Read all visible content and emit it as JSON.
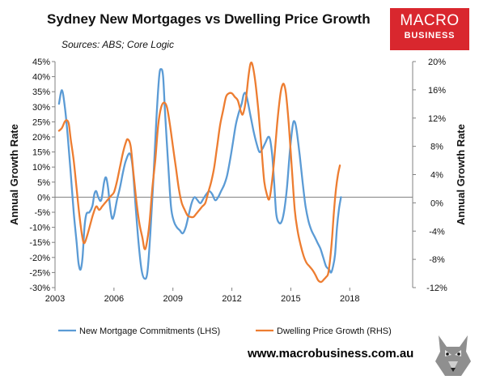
{
  "header": {
    "title": "Sydney New Mortgages vs Dwelling Price Growth",
    "subtitle": "Sources: ABS; Core Logic"
  },
  "logo": {
    "line1": "MACRO",
    "line2": "BUSINESS",
    "color": "#d9272e"
  },
  "footer": {
    "url": "www.macrobusiness.com.au",
    "mascot_icon": "wolf-icon"
  },
  "chart_data": {
    "type": "line",
    "x_range": [
      2003.0,
      2021.2
    ],
    "x_ticks": [
      {
        "value": 2003,
        "label": "2003"
      },
      {
        "value": 2006,
        "label": "2006"
      },
      {
        "value": 2009,
        "label": "2009"
      },
      {
        "value": 2012,
        "label": "2012"
      },
      {
        "value": 2015,
        "label": "2015"
      },
      {
        "value": 2018,
        "label": "2018"
      }
    ],
    "left_axis": {
      "label": "Annual Growth Rate",
      "range": [
        -30,
        45
      ],
      "ticks": [
        "45%",
        "40%",
        "35%",
        "30%",
        "25%",
        "20%",
        "15%",
        "10%",
        "5%",
        "0%",
        "-5%",
        "-10%",
        "-15%",
        "-20%",
        "-25%",
        "-30%"
      ],
      "tick_values": [
        45,
        40,
        35,
        30,
        25,
        20,
        15,
        10,
        5,
        0,
        -5,
        -10,
        -15,
        -20,
        -25,
        -30
      ]
    },
    "right_axis": {
      "label": "Annual Growth Rate",
      "range": [
        -12,
        20
      ],
      "ticks": [
        "20%",
        "16%",
        "12%",
        "8%",
        "4%",
        "0%",
        "-4%",
        "-8%",
        "-12%"
      ],
      "tick_values": [
        20,
        16,
        12,
        8,
        4,
        0,
        -4,
        -8,
        -12
      ]
    },
    "grid": false,
    "legend_position": "bottom",
    "series": [
      {
        "name": "New Mortgage Commitments (LHS)",
        "axis": "left",
        "color": "#5b9bd5",
        "points": [
          [
            2003.2,
            31
          ],
          [
            2003.35,
            35.5
          ],
          [
            2003.5,
            30
          ],
          [
            2003.65,
            20
          ],
          [
            2003.8,
            8
          ],
          [
            2003.95,
            -5
          ],
          [
            2004.1,
            -15
          ],
          [
            2004.2,
            -22
          ],
          [
            2004.3,
            -24
          ],
          [
            2004.4,
            -20
          ],
          [
            2004.5,
            -10
          ],
          [
            2004.6,
            -5.5
          ],
          [
            2004.75,
            -5
          ],
          [
            2004.9,
            -3
          ],
          [
            2005.0,
            1
          ],
          [
            2005.1,
            2
          ],
          [
            2005.2,
            0
          ],
          [
            2005.35,
            -1
          ],
          [
            2005.5,
            5
          ],
          [
            2005.6,
            6.5
          ],
          [
            2005.7,
            3
          ],
          [
            2005.8,
            -3
          ],
          [
            2005.9,
            -7
          ],
          [
            2006.0,
            -6
          ],
          [
            2006.15,
            -1
          ],
          [
            2006.3,
            3
          ],
          [
            2006.45,
            8
          ],
          [
            2006.6,
            12
          ],
          [
            2006.8,
            14.5
          ],
          [
            2006.95,
            10
          ],
          [
            2007.1,
            -3
          ],
          [
            2007.25,
            -15
          ],
          [
            2007.4,
            -24
          ],
          [
            2007.55,
            -27
          ],
          [
            2007.7,
            -25
          ],
          [
            2007.85,
            -12
          ],
          [
            2008.0,
            5
          ],
          [
            2008.15,
            25
          ],
          [
            2008.3,
            40
          ],
          [
            2008.4,
            42.5
          ],
          [
            2008.5,
            40
          ],
          [
            2008.6,
            28
          ],
          [
            2008.75,
            12
          ],
          [
            2008.9,
            -3
          ],
          [
            2009.05,
            -8
          ],
          [
            2009.2,
            -10
          ],
          [
            2009.35,
            -11
          ],
          [
            2009.5,
            -12
          ],
          [
            2009.65,
            -10
          ],
          [
            2009.8,
            -6
          ],
          [
            2009.95,
            -2
          ],
          [
            2010.1,
            0
          ],
          [
            2010.25,
            -1
          ],
          [
            2010.4,
            -2
          ],
          [
            2010.55,
            -0.5
          ],
          [
            2010.7,
            1
          ],
          [
            2010.85,
            2
          ],
          [
            2011.0,
            1
          ],
          [
            2011.15,
            -1
          ],
          [
            2011.3,
            0
          ],
          [
            2011.45,
            2
          ],
          [
            2011.6,
            4
          ],
          [
            2011.75,
            7
          ],
          [
            2011.9,
            12
          ],
          [
            2012.05,
            18
          ],
          [
            2012.2,
            24
          ],
          [
            2012.35,
            28
          ],
          [
            2012.5,
            31
          ],
          [
            2012.6,
            34
          ],
          [
            2012.7,
            34.5
          ],
          [
            2012.8,
            32
          ],
          [
            2012.95,
            27
          ],
          [
            2013.1,
            22
          ],
          [
            2013.25,
            18
          ],
          [
            2013.4,
            15
          ],
          [
            2013.55,
            16
          ],
          [
            2013.7,
            18
          ],
          [
            2013.85,
            20
          ],
          [
            2013.95,
            19
          ],
          [
            2014.05,
            14
          ],
          [
            2014.15,
            5
          ],
          [
            2014.25,
            -5
          ],
          [
            2014.35,
            -8
          ],
          [
            2014.5,
            -8.5
          ],
          [
            2014.65,
            -5
          ],
          [
            2014.8,
            3
          ],
          [
            2014.95,
            15
          ],
          [
            2015.1,
            24
          ],
          [
            2015.2,
            25
          ],
          [
            2015.3,
            22
          ],
          [
            2015.45,
            14
          ],
          [
            2015.6,
            5
          ],
          [
            2015.75,
            -3
          ],
          [
            2015.9,
            -8
          ],
          [
            2016.05,
            -11
          ],
          [
            2016.2,
            -13
          ],
          [
            2016.35,
            -15
          ],
          [
            2016.5,
            -17
          ],
          [
            2016.65,
            -20
          ],
          [
            2016.8,
            -23
          ],
          [
            2016.95,
            -24
          ],
          [
            2017.05,
            -25
          ],
          [
            2017.15,
            -23
          ],
          [
            2017.25,
            -19
          ],
          [
            2017.35,
            -10
          ],
          [
            2017.45,
            -4
          ],
          [
            2017.55,
            0
          ]
        ]
      },
      {
        "name": "Dwelling Price Growth (RHS)",
        "axis": "right",
        "color": "#ed7d31",
        "points": [
          [
            2003.2,
            10.2
          ],
          [
            2003.35,
            10.6
          ],
          [
            2003.5,
            11.5
          ],
          [
            2003.6,
            11.7
          ],
          [
            2003.7,
            11.2
          ],
          [
            2003.8,
            9
          ],
          [
            2003.95,
            6
          ],
          [
            2004.1,
            2
          ],
          [
            2004.25,
            -2
          ],
          [
            2004.4,
            -5
          ],
          [
            2004.5,
            -5.7
          ],
          [
            2004.65,
            -4.5
          ],
          [
            2004.8,
            -3
          ],
          [
            2004.95,
            -1.5
          ],
          [
            2005.1,
            -0.5
          ],
          [
            2005.25,
            -1
          ],
          [
            2005.4,
            -0.5
          ],
          [
            2005.55,
            0
          ],
          [
            2005.7,
            0.5
          ],
          [
            2005.85,
            1
          ],
          [
            2006.0,
            1.5
          ],
          [
            2006.15,
            3
          ],
          [
            2006.3,
            5
          ],
          [
            2006.45,
            7
          ],
          [
            2006.6,
            8.5
          ],
          [
            2006.7,
            9
          ],
          [
            2006.85,
            8
          ],
          [
            2007.0,
            4
          ],
          [
            2007.15,
            0
          ],
          [
            2007.3,
            -3
          ],
          [
            2007.45,
            -5
          ],
          [
            2007.55,
            -6.5
          ],
          [
            2007.65,
            -6
          ],
          [
            2007.8,
            -3
          ],
          [
            2007.95,
            2
          ],
          [
            2008.1,
            6
          ],
          [
            2008.25,
            11
          ],
          [
            2008.4,
            13.5
          ],
          [
            2008.55,
            14.2
          ],
          [
            2008.7,
            13.5
          ],
          [
            2008.85,
            11
          ],
          [
            2009.0,
            8
          ],
          [
            2009.15,
            5
          ],
          [
            2009.3,
            2
          ],
          [
            2009.45,
            0
          ],
          [
            2009.6,
            -1
          ],
          [
            2009.75,
            -1.8
          ],
          [
            2009.9,
            -2
          ],
          [
            2010.05,
            -2
          ],
          [
            2010.2,
            -1.5
          ],
          [
            2010.35,
            -1
          ],
          [
            2010.5,
            -0.5
          ],
          [
            2010.65,
            0
          ],
          [
            2010.8,
            1.5
          ],
          [
            2010.95,
            3
          ],
          [
            2011.1,
            5
          ],
          [
            2011.25,
            8
          ],
          [
            2011.4,
            11
          ],
          [
            2011.55,
            13
          ],
          [
            2011.7,
            15
          ],
          [
            2011.85,
            15.5
          ],
          [
            2012.0,
            15.5
          ],
          [
            2012.15,
            15
          ],
          [
            2012.3,
            14.5
          ],
          [
            2012.45,
            13
          ],
          [
            2012.55,
            12.5
          ],
          [
            2012.65,
            13.5
          ],
          [
            2012.75,
            15.5
          ],
          [
            2012.85,
            18
          ],
          [
            2012.95,
            19.7
          ],
          [
            2013.05,
            19.5
          ],
          [
            2013.2,
            17
          ],
          [
            2013.35,
            13
          ],
          [
            2013.5,
            8
          ],
          [
            2013.65,
            3
          ],
          [
            2013.8,
            1
          ],
          [
            2013.9,
            0.5
          ],
          [
            2014.0,
            2
          ],
          [
            2014.15,
            6
          ],
          [
            2014.3,
            11
          ],
          [
            2014.45,
            15
          ],
          [
            2014.55,
            16.5
          ],
          [
            2014.65,
            16.8
          ],
          [
            2014.75,
            15.5
          ],
          [
            2014.9,
            11
          ],
          [
            2015.05,
            5
          ],
          [
            2015.2,
            -1
          ],
          [
            2015.35,
            -4
          ],
          [
            2015.5,
            -6
          ],
          [
            2015.65,
            -7.5
          ],
          [
            2015.8,
            -8.5
          ],
          [
            2015.95,
            -9
          ],
          [
            2016.1,
            -9.5
          ],
          [
            2016.25,
            -10.2
          ],
          [
            2016.4,
            -11
          ],
          [
            2016.55,
            -11.2
          ],
          [
            2016.7,
            -10.8
          ],
          [
            2016.8,
            -10.5
          ],
          [
            2016.9,
            -10
          ],
          [
            2017.0,
            -8
          ],
          [
            2017.1,
            -5
          ],
          [
            2017.2,
            -1
          ],
          [
            2017.3,
            2
          ],
          [
            2017.4,
            4
          ],
          [
            2017.5,
            5.3
          ]
        ]
      }
    ]
  }
}
